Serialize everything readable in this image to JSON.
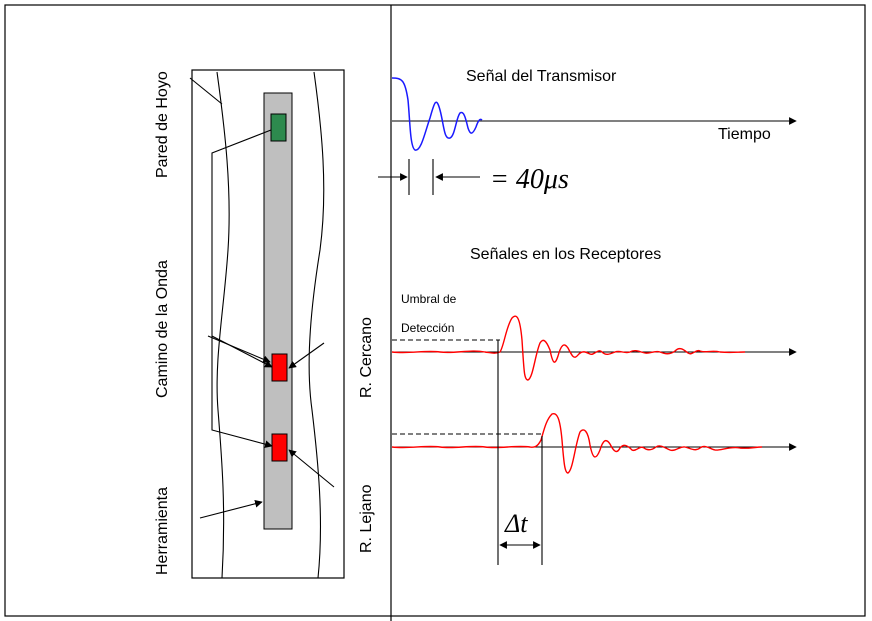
{
  "labels": {
    "pared_de_hoyo": "Pared de Hoyo",
    "camino_de_la_onda": "Camino de la Onda",
    "herramienta": "Herramienta",
    "senal_transmisor": "Señal del Transmisor",
    "tiempo": "Tiempo",
    "equals_40us": "= 40μs",
    "senales_receptores": "Señales en los Receptores",
    "umbral_de": "Umbral de",
    "deteccion": "Detección",
    "r_cercano": "R. Cercano",
    "r_lejano": "R. Lejano",
    "delta_t": "Δt"
  },
  "colors": {
    "transmitter": "#2d8a4e",
    "receiver": "#ff0000",
    "tool": "#bfbfbf",
    "transmitter_signal": "#1a1aff",
    "receiver_signal": "#ff0000"
  }
}
